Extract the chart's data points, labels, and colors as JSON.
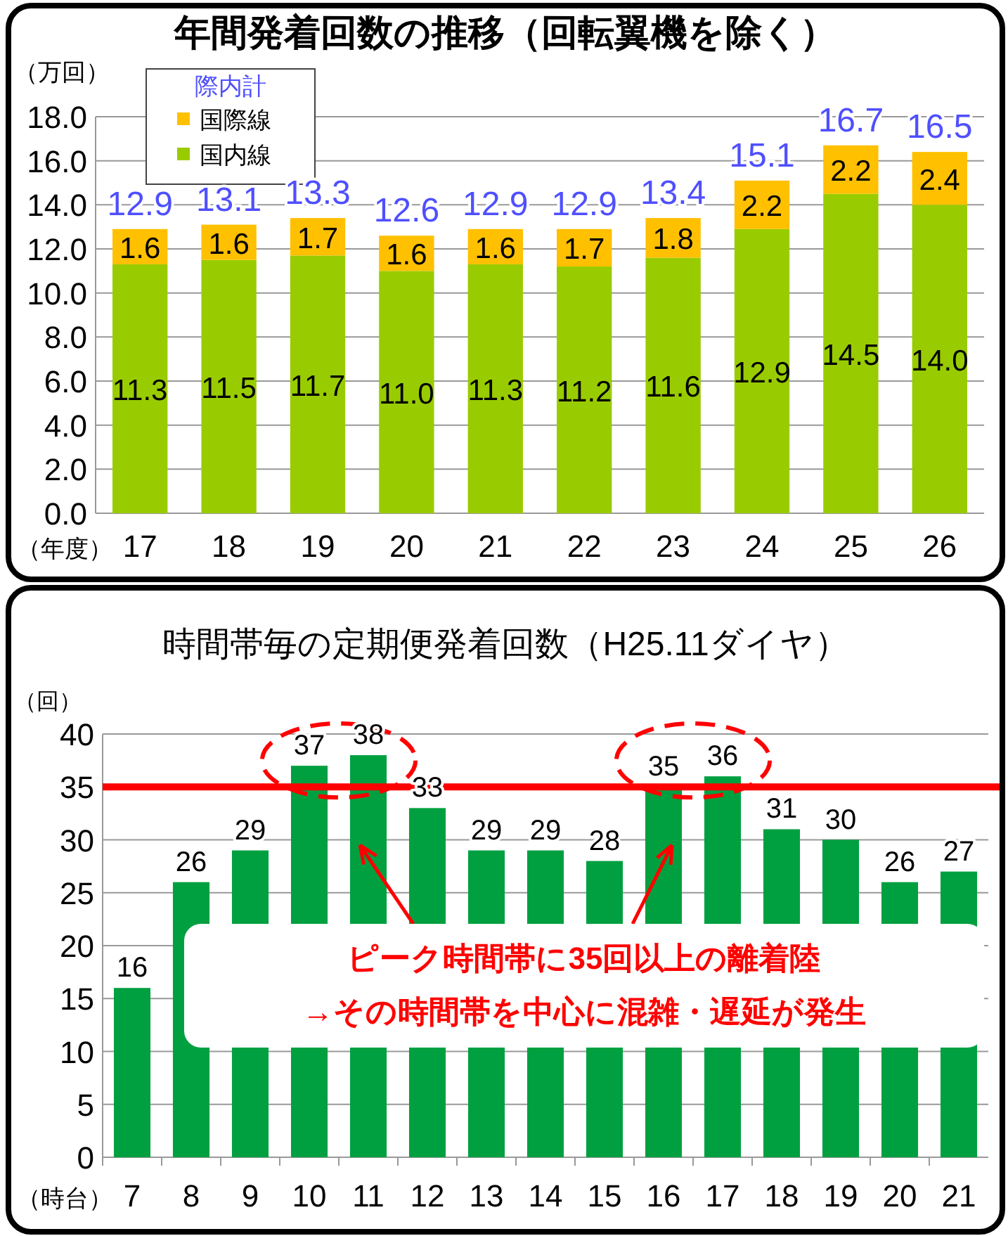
{
  "chart_data": [
    {
      "type": "bar",
      "title": "年間発着回数の推移（回転翼機を除く）",
      "ylabel": "（万回）",
      "xlabel": "（年度）",
      "stacked": true,
      "grid": "y",
      "legend": "top left",
      "legend_title": "際内計",
      "categories": [
        "17",
        "18",
        "19",
        "20",
        "21",
        "22",
        "23",
        "24",
        "25",
        "26"
      ],
      "series": [
        {
          "name": "国内線",
          "color": "#99cc00",
          "values": [
            11.3,
            11.5,
            11.7,
            11.0,
            11.3,
            11.2,
            11.6,
            12.9,
            14.5,
            14.0
          ],
          "value_labels": [
            "11.3",
            "11.5",
            "11.7",
            "11.0",
            "11.3",
            "11.2",
            "11.6",
            "12.9",
            "14.5",
            "14.0"
          ]
        },
        {
          "name": "国際線",
          "color": "#ffc000",
          "values": [
            1.6,
            1.6,
            1.7,
            1.6,
            1.6,
            1.7,
            1.8,
            2.2,
            2.2,
            2.4
          ],
          "value_labels": [
            "1.6",
            "1.6",
            "1.7",
            "1.6",
            "1.6",
            "1.7",
            "1.8",
            "2.2",
            "2.2",
            "2.4"
          ]
        }
      ],
      "totals": [
        "12.9",
        "13.1",
        "13.3",
        "12.6",
        "12.9",
        "12.9",
        "13.4",
        "15.1",
        "16.7",
        "16.5"
      ],
      "ylim": [
        0,
        18
      ],
      "yticks": [
        {
          "value": 0,
          "label": "0.0"
        },
        {
          "value": 2,
          "label": "2.0"
        },
        {
          "value": 4,
          "label": "4.0"
        },
        {
          "value": 6,
          "label": "6.0"
        },
        {
          "value": 8,
          "label": "8.0"
        },
        {
          "value": 10,
          "label": "10.0"
        },
        {
          "value": 12,
          "label": "12.0"
        },
        {
          "value": 14,
          "label": "14.0"
        },
        {
          "value": 16,
          "label": "16.0"
        },
        {
          "value": 18,
          "label": "18.0"
        }
      ]
    },
    {
      "type": "bar",
      "title": "時間帯毎の定期便発着回数（H25.11ダイヤ）",
      "ylabel": "（回）",
      "xlabel": "（時台）",
      "data_labels": true,
      "grid": "y",
      "categories": [
        "7",
        "8",
        "9",
        "10",
        "11",
        "12",
        "13",
        "14",
        "15",
        "16",
        "17",
        "18",
        "19",
        "20",
        "21"
      ],
      "values": [
        16,
        26,
        29,
        37,
        38,
        33,
        29,
        29,
        28,
        35,
        36,
        31,
        30,
        26,
        27
      ],
      "color": "#00a040",
      "ylim": [
        0,
        40
      ],
      "yticks": [
        0,
        5,
        10,
        15,
        20,
        25,
        30,
        35,
        40
      ],
      "ref_lines": [
        {
          "axis": "y",
          "value": 35,
          "color": "#ff0000"
        }
      ],
      "annotations": [
        "ピーク時間帯に35回以上の離着陸",
        "→その時間帯を中心に混雑・遅延が発生"
      ]
    }
  ]
}
